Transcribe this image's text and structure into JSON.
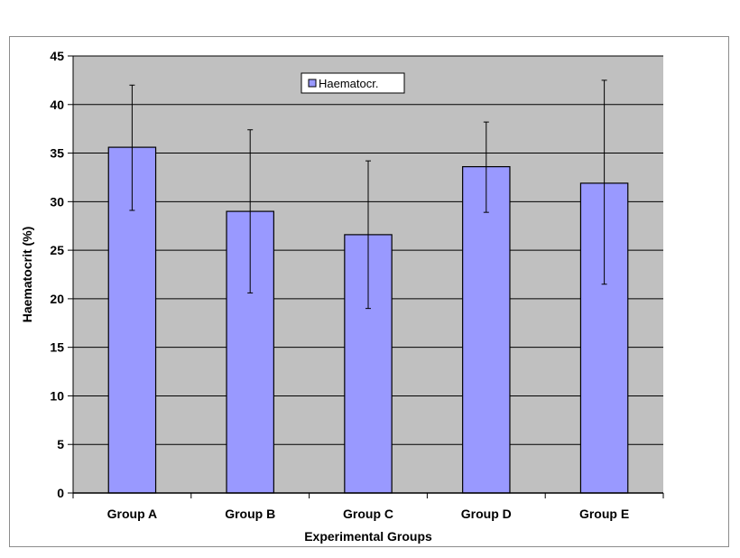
{
  "chart_data": {
    "type": "bar",
    "title": "",
    "xlabel": "Experimental Groups",
    "ylabel": "Haematocrit (%)",
    "categories": [
      "Group A",
      "Group B",
      "Group C",
      "Group D",
      "Group E"
    ],
    "series": [
      {
        "name": "Haematocr.",
        "values": [
          35.6,
          29.0,
          26.6,
          33.6,
          31.9
        ],
        "error_low": [
          29.1,
          20.6,
          19.0,
          28.9,
          21.5
        ],
        "error_high": [
          42.0,
          37.4,
          34.2,
          38.2,
          42.5
        ]
      }
    ],
    "ylim": [
      0,
      45
    ],
    "yticks": [
      "0",
      "5",
      "10",
      "15",
      "20",
      "25",
      "30",
      "35",
      "40",
      "45"
    ],
    "grid": true,
    "legend_position": "top-center",
    "colors": {
      "bar_fill": "#9999ff",
      "bar_stroke": "#000000",
      "plot_background": "#c0c0c0",
      "gridline": "#000000"
    }
  }
}
